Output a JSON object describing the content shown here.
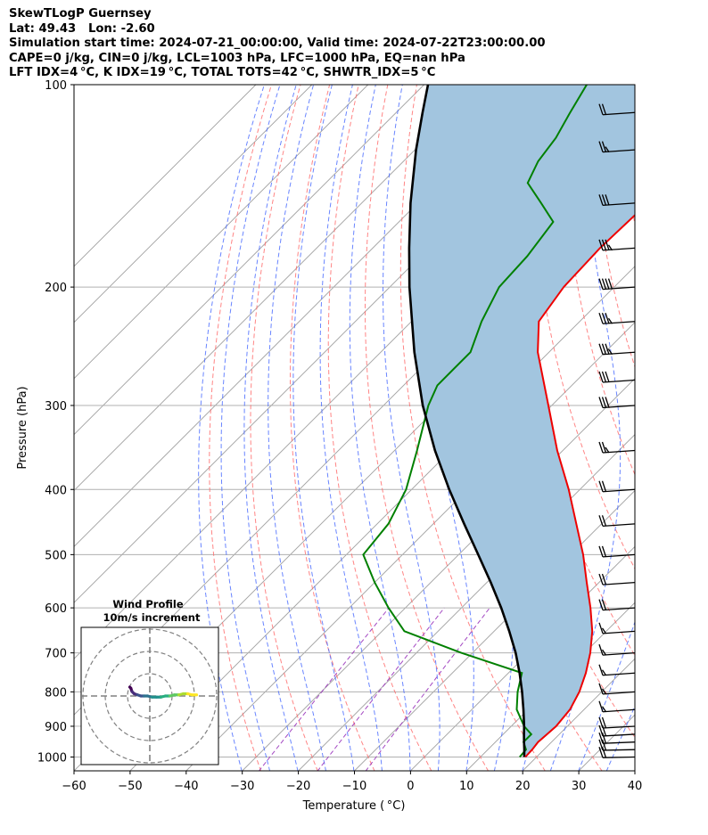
{
  "header": {
    "line1": "SkewTLogP Guernsey",
    "line2": "Lat: 49.43   Lon: -2.60",
    "line3": "Simulation start time: 2024-07-21_00:00:00, Valid time: 2024-07-22T23:00:00.00",
    "line4": "CAPE=0 j/kg, CIN=0 j/kg, LCL=1003 hPa, LFC=1000 hPa, EQ=nan hPa",
    "line5": "LFT IDX=4 °C, K IDX=19 °C, TOTAL TOTS=42 °C, SHWTR_IDX=5 °C"
  },
  "colors": {
    "temperature": "#ee0000",
    "dewpoint": "#008000",
    "parcel": "#000000",
    "shading": "#a2c5df",
    "dry_adiabats": "#ff6666",
    "moist_adiabats": "#4466ff",
    "mixing_ratio": "#9933bb",
    "isotherms": "#a0a0a0",
    "isobars": "#b0b0b0"
  },
  "chart_data": {
    "type": "line",
    "subtype": "skew-t log-p",
    "xlabel": "Temperature ( °C)",
    "ylabel": "Pressure (hPa)",
    "xlim": [
      -60,
      40
    ],
    "ylim": [
      1050,
      100
    ],
    "y_scale": "log",
    "x_ticks": [
      "−60",
      "−50",
      "−40",
      "−30",
      "−20",
      "−10",
      "0",
      "10",
      "20",
      "30",
      "40"
    ],
    "y_ticks": [
      "100",
      "200",
      "300",
      "400",
      "500",
      "600",
      "700",
      "800",
      "900",
      "1000"
    ],
    "grid": true,
    "series": [
      {
        "key": "temperature",
        "pressure": [
          1000,
          975,
          950,
          925,
          900,
          850,
          800,
          750,
          700,
          650,
          600,
          550,
          500,
          450,
          400,
          350,
          300,
          250,
          225,
          200,
          175,
          150,
          125,
          110,
          100
        ],
        "values": [
          18.0,
          17.9,
          17.6,
          17.8,
          18.0,
          17.5,
          16.0,
          13.8,
          11.0,
          7.5,
          3.0,
          -2.2,
          -7.8,
          -14.5,
          -22.0,
          -31.0,
          -40.6,
          -52.0,
          -57.3,
          -59.0,
          -59.5,
          -59.0,
          -61.0,
          -62.8,
          -64.5
        ]
      },
      {
        "key": "dewpoint",
        "pressure": [
          1000,
          975,
          950,
          925,
          900,
          850,
          800,
          750,
          700,
          650,
          600,
          550,
          500,
          450,
          400,
          350,
          300,
          280,
          250,
          225,
          200,
          180,
          160,
          150,
          140,
          130,
          120,
          110,
          100
        ],
        "values": [
          17.0,
          16.8,
          15.0,
          15.0,
          12.3,
          8.0,
          5.0,
          2.4,
          -12.0,
          -26.0,
          -33.0,
          -40.0,
          -47.0,
          -48.0,
          -51.0,
          -56.0,
          -62.0,
          -64.0,
          -64.0,
          -67.5,
          -70.5,
          -71.0,
          -72.5,
          -78.0,
          -84.0,
          -86.0,
          -87.0,
          -89.0,
          -91.0
        ]
      },
      {
        "key": "parcel",
        "pressure": [
          1000,
          975,
          950,
          925,
          900,
          850,
          800,
          750,
          700,
          650,
          600,
          550,
          500,
          450,
          400,
          350,
          300,
          250,
          200,
          175,
          150,
          125,
          110,
          100
        ],
        "values": [
          17.8,
          16.5,
          15.1,
          13.7,
          12.3,
          9.2,
          5.8,
          2.0,
          -2.3,
          -7.3,
          -12.9,
          -19.3,
          -26.5,
          -34.5,
          -43.3,
          -52.8,
          -63.0,
          -74.0,
          -86.5,
          -93.5,
          -101.3,
          -109.8,
          -115.3,
          -119.3
        ]
      }
    ],
    "wind_barbs": [
      {
        "pressure": 1000,
        "speed_kt": 20,
        "direction": 265
      },
      {
        "pressure": 975,
        "speed_kt": 20,
        "direction": 265
      },
      {
        "pressure": 950,
        "speed_kt": 20,
        "direction": 268
      },
      {
        "pressure": 925,
        "speed_kt": 20,
        "direction": 270
      },
      {
        "pressure": 900,
        "speed_kt": 20,
        "direction": 270
      },
      {
        "pressure": 850,
        "speed_kt": 15,
        "direction": 272
      },
      {
        "pressure": 800,
        "speed_kt": 15,
        "direction": 272
      },
      {
        "pressure": 750,
        "speed_kt": 15,
        "direction": 272
      },
      {
        "pressure": 700,
        "speed_kt": 15,
        "direction": 272
      },
      {
        "pressure": 650,
        "speed_kt": 15,
        "direction": 272
      },
      {
        "pressure": 600,
        "speed_kt": 20,
        "direction": 272
      },
      {
        "pressure": 550,
        "speed_kt": 20,
        "direction": 272
      },
      {
        "pressure": 500,
        "speed_kt": 20,
        "direction": 272
      },
      {
        "pressure": 450,
        "speed_kt": 20,
        "direction": 272
      },
      {
        "pressure": 400,
        "speed_kt": 20,
        "direction": 272
      },
      {
        "pressure": 350,
        "speed_kt": 25,
        "direction": 272
      },
      {
        "pressure": 300,
        "speed_kt": 30,
        "direction": 272
      },
      {
        "pressure": 275,
        "speed_kt": 30,
        "direction": 272
      },
      {
        "pressure": 250,
        "speed_kt": 35,
        "direction": 272
      },
      {
        "pressure": 225,
        "speed_kt": 35,
        "direction": 272
      },
      {
        "pressure": 200,
        "speed_kt": 40,
        "direction": 272
      },
      {
        "pressure": 175,
        "speed_kt": 35,
        "direction": 272
      },
      {
        "pressure": 150,
        "speed_kt": 30,
        "direction": 272
      },
      {
        "pressure": 125,
        "speed_kt": 25,
        "direction": 272
      },
      {
        "pressure": 110,
        "speed_kt": 20,
        "direction": 272
      }
    ],
    "inset": {
      "type": "scatter",
      "title": "Wind Profile",
      "subtitle": "10m/s increment",
      "rings_m_s": [
        10,
        20,
        30
      ],
      "u": [
        -9.0,
        -8.5,
        -8.0,
        -7.0,
        -5.5,
        -4.0,
        -2.5,
        -1.0,
        1.0,
        3.0,
        5.0,
        7.0,
        9.0,
        11.0,
        13.0,
        15.0,
        17.0,
        19.0,
        21.0
      ],
      "v": [
        4.0,
        3.5,
        2.0,
        1.0,
        0.5,
        0.0,
        0.0,
        0.0,
        -0.5,
        -0.5,
        -0.5,
        0.0,
        0.0,
        0.5,
        0.5,
        1.0,
        1.0,
        0.5,
        0.5
      ],
      "colormap": "viridis"
    }
  }
}
